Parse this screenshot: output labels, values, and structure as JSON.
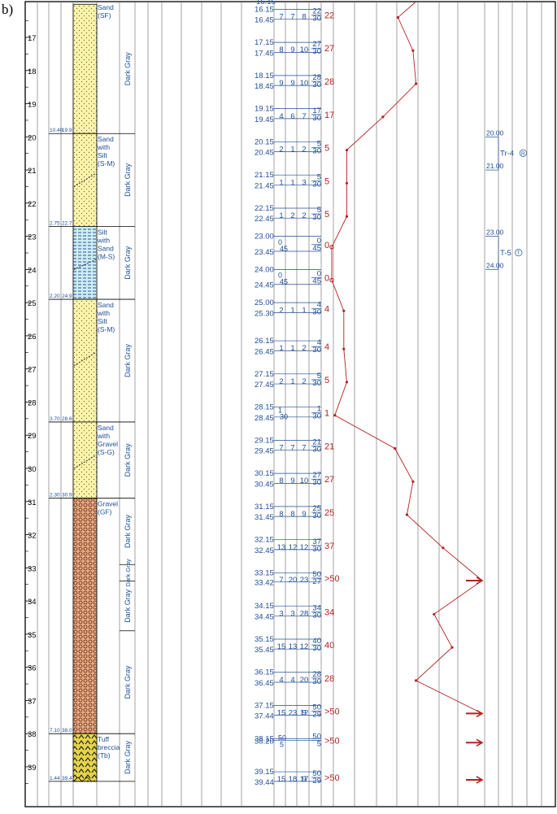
{
  "figure_label": "b)",
  "colors": {
    "blue": "#1f4e96",
    "red": "#b22222",
    "sand": "#fbf3a6",
    "silt": "#cdeef2",
    "gravel": "#e9a882",
    "tuff": "#e6d44a"
  },
  "depth_ticks": [
    "17",
    "18",
    "19",
    "20",
    "21",
    "22",
    "23",
    "24",
    "25",
    "26",
    "27",
    "28",
    "29",
    "30",
    "31",
    "32",
    "33",
    "34",
    "35",
    "36",
    "37",
    "38",
    "39"
  ],
  "layers": [
    {
      "name": "Sand",
      "lines": [
        "Sand",
        "(SF)"
      ],
      "top": 16.0,
      "bottom": 19.9,
      "pattern": "sand",
      "left_label": "10.40",
      "depth_label": "19.9",
      "color_text": "Dark Gray"
    },
    {
      "name": "Sand with Silt",
      "lines": [
        "Sand",
        "with",
        "Silt",
        "(S-M)"
      ],
      "top": 19.9,
      "bottom": 22.7,
      "pattern": "sand",
      "left_label": "2.75",
      "depth_label": "22.7",
      "color_text": "Dark Gray"
    },
    {
      "name": "Silt with Sand",
      "lines": [
        "Silt",
        "with",
        "Sand",
        "(M-S)"
      ],
      "top": 22.7,
      "bottom": 24.9,
      "pattern": "silt",
      "left_label": "2.20",
      "depth_label": "24.9",
      "color_text": "Dark Gray"
    },
    {
      "name": "Sand with Silt",
      "lines": [
        "Sand",
        "with",
        "Silt",
        "(S-M)"
      ],
      "top": 24.9,
      "bottom": 28.6,
      "pattern": "sand",
      "left_label": "3.70",
      "depth_label": "28.6",
      "color_text": "Dark Gray"
    },
    {
      "name": "Sand with Gravel",
      "lines": [
        "Sand",
        "with",
        "Gravel",
        "(S-G)"
      ],
      "top": 28.6,
      "bottom": 30.9,
      "pattern": "sand",
      "left_label": "2.30",
      "depth_label": "30.9",
      "color_text": "Dark Gray"
    },
    {
      "name": "Gravel",
      "lines": [
        "Gravel",
        "(GF)"
      ],
      "top": 30.9,
      "bottom": 38.0,
      "pattern": "gravel",
      "left_label": "7.10",
      "depth_label": "38.0",
      "color_text": "Dark Gray"
    },
    {
      "name": "Tuff breccia",
      "lines": [
        "Tuff",
        "breccia",
        "(Tb)"
      ],
      "top": 38.0,
      "bottom": 39.44,
      "pattern": "tuff",
      "left_label": "1.44",
      "depth_label": "39.4",
      "color_text": "Dark Gray"
    }
  ],
  "color_cells": [
    {
      "text": "Dark Gray",
      "top": 16.0,
      "bottom": 19.9
    },
    {
      "text": "Dark Gray",
      "top": 19.9,
      "bottom": 22.7
    },
    {
      "text": "Dark Gray",
      "top": 22.7,
      "bottom": 24.9
    },
    {
      "text": "Dark Gray",
      "top": 24.9,
      "bottom": 28.6
    },
    {
      "text": "Dark Gray",
      "top": 28.6,
      "bottom": 30.9
    },
    {
      "text": "Dark Gray",
      "top": 30.9,
      "bottom": 32.9
    },
    {
      "text": "Dark Gray",
      "top": 32.9,
      "bottom": 33.4,
      "small": true
    },
    {
      "text": "Dark Gray",
      "top": 33.4,
      "bottom": 34.9
    },
    {
      "text": "Dark Gray",
      "top": 34.9,
      "bottom": 38.0
    },
    {
      "text": "Dark Gray",
      "top": 38.0,
      "bottom": 39.44
    }
  ],
  "tests": [
    {
      "start": "16.15",
      "end": "16.45",
      "d": 16.15,
      "de": 16.45,
      "blows": [
        "7",
        "7",
        "8"
      ],
      "frac": [
        "22",
        "30"
      ],
      "n": "22",
      "nv": 22
    },
    {
      "start": "17.15",
      "end": "17.45",
      "d": 17.15,
      "de": 17.45,
      "blows": [
        "8",
        "9",
        "10"
      ],
      "frac": [
        "27",
        "30"
      ],
      "n": "27",
      "nv": 27
    },
    {
      "start": "18.15",
      "end": "18.45",
      "d": 18.15,
      "de": 18.45,
      "blows": [
        "9",
        "9",
        "10"
      ],
      "frac": [
        "28",
        "30"
      ],
      "n": "28",
      "nv": 28
    },
    {
      "start": "19.15",
      "end": "19.45",
      "d": 19.15,
      "de": 19.45,
      "blows": [
        "4",
        "6",
        "7"
      ],
      "frac": [
        "17",
        "30"
      ],
      "n": "17",
      "nv": 17
    },
    {
      "start": "20.15",
      "end": "20.45",
      "d": 20.15,
      "de": 20.45,
      "blows": [
        "2",
        "1",
        "2"
      ],
      "frac": [
        "5",
        "30"
      ],
      "n": "5",
      "nv": 5
    },
    {
      "start": "21.15",
      "end": "21.45",
      "d": 21.15,
      "de": 21.45,
      "blows": [
        "1",
        "1",
        "3"
      ],
      "frac": [
        "5",
        "30"
      ],
      "n": "5",
      "nv": 5
    },
    {
      "start": "22.15",
      "end": "22.45",
      "d": 22.15,
      "de": 22.45,
      "blows": [
        "1",
        "2",
        "2"
      ],
      "frac": [
        "5",
        "30"
      ],
      "n": "5",
      "nv": 5
    },
    {
      "start": "23.00",
      "end": "23.45",
      "d": 23.0,
      "de": 23.45,
      "blows": [
        "0",
        "45"
      ],
      "frac": [
        "0",
        "45"
      ],
      "n": "0",
      "nv": 0,
      "zero": true
    },
    {
      "start": "24.00",
      "end": "24.45",
      "d": 24.0,
      "de": 24.45,
      "blows": [
        "0",
        "45"
      ],
      "frac": [
        "0",
        "45"
      ],
      "n": "0",
      "nv": 0,
      "zero": true
    },
    {
      "start": "25.00",
      "end": "25.30",
      "d": 25.0,
      "de": 25.3,
      "blows": [
        "2",
        "1",
        "1"
      ],
      "frac": [
        "4",
        "30"
      ],
      "n": "4",
      "nv": 4
    },
    {
      "start": "26.15",
      "end": "26.45",
      "d": 26.15,
      "de": 26.45,
      "blows": [
        "1",
        "1",
        "2"
      ],
      "frac": [
        "4",
        "30"
      ],
      "n": "4",
      "nv": 4
    },
    {
      "start": "27.15",
      "end": "27.45",
      "d": 27.15,
      "de": 27.45,
      "blows": [
        "2",
        "1",
        "2"
      ],
      "frac": [
        "5",
        "30"
      ],
      "n": "5",
      "nv": 5
    },
    {
      "start": "28.15",
      "end": "28.45",
      "d": 28.15,
      "de": 28.45,
      "blows": [
        "1",
        "30"
      ],
      "frac": [
        "1",
        "30"
      ],
      "n": "1",
      "nv": 1
    },
    {
      "start": "29.15",
      "end": "29.45",
      "d": 29.15,
      "de": 29.45,
      "blows": [
        "7",
        "7",
        "7"
      ],
      "frac": [
        "21",
        "30"
      ],
      "n": "21",
      "nv": 21
    },
    {
      "start": "30.15",
      "end": "30.45",
      "d": 30.15,
      "de": 30.45,
      "blows": [
        "8",
        "9",
        "10"
      ],
      "frac": [
        "27",
        "30"
      ],
      "n": "27",
      "nv": 27
    },
    {
      "start": "31.15",
      "end": "31.45",
      "d": 31.15,
      "de": 31.45,
      "blows": [
        "8",
        "8",
        "9"
      ],
      "frac": [
        "25",
        "30"
      ],
      "n": "25",
      "nv": 25
    },
    {
      "start": "32.15",
      "end": "32.45",
      "d": 32.15,
      "de": 32.45,
      "blows": [
        "13",
        "12",
        "12"
      ],
      "frac": [
        "37",
        "30"
      ],
      "n": "37",
      "nv": 37
    },
    {
      "start": "33.15",
      "end": "33.42",
      "d": 33.15,
      "de": 33.42,
      "blows": [
        "7",
        "20",
        "23"
      ],
      "frac": [
        "50",
        "27"
      ],
      "n": ">50",
      "nv": 50,
      "refusal": true
    },
    {
      "start": "34.15",
      "end": "34.45",
      "d": 34.15,
      "de": 34.45,
      "blows": [
        "3",
        "3",
        "28"
      ],
      "frac": [
        "34",
        "30"
      ],
      "n": "34",
      "nv": 34
    },
    {
      "start": "35.15",
      "end": "35.45",
      "d": 35.15,
      "de": 35.45,
      "blows": [
        "15",
        "13",
        "12"
      ],
      "frac": [
        "40",
        "30"
      ],
      "n": "40",
      "nv": 40
    },
    {
      "start": "36.15",
      "end": "36.45",
      "d": 36.15,
      "de": 36.45,
      "blows": [
        "4",
        "4",
        "20"
      ],
      "frac": [
        "28",
        "30"
      ],
      "n": "28",
      "nv": 28
    },
    {
      "start": "37.15",
      "end": "37.44",
      "d": 37.15,
      "de": 37.44,
      "blows": [
        "15",
        "23",
        "12"
      ],
      "frac": [
        "50",
        "29"
      ],
      "n": ">50",
      "nv": 50,
      "refusal": true,
      "extra": "9"
    },
    {
      "start": "38.15",
      "end": "38.20",
      "d": 38.15,
      "de": 38.2,
      "blows": [
        "50",
        "5"
      ],
      "frac": [
        "50",
        "5"
      ],
      "n": ">50",
      "nv": 50,
      "refusal": true
    },
    {
      "start": "39.15",
      "end": "39.44",
      "d": 39.15,
      "de": 39.44,
      "blows": [
        "15",
        "18",
        "17"
      ],
      "frac": [
        "50",
        "29"
      ],
      "n": ">50",
      "nv": 50,
      "refusal": true,
      "extra": "9"
    }
  ],
  "top_partial": {
    "label": "16.15"
  },
  "samples": [
    {
      "top": "20.00",
      "bottom": "21.00",
      "label": "Tr-4",
      "symbol": "R",
      "d1": 20.0,
      "d2": 21.0
    },
    {
      "top": "23.00",
      "bottom": "24.00",
      "label": "T-5",
      "symbol": "T",
      "d1": 23.0,
      "d2": 24.0
    }
  ]
}
